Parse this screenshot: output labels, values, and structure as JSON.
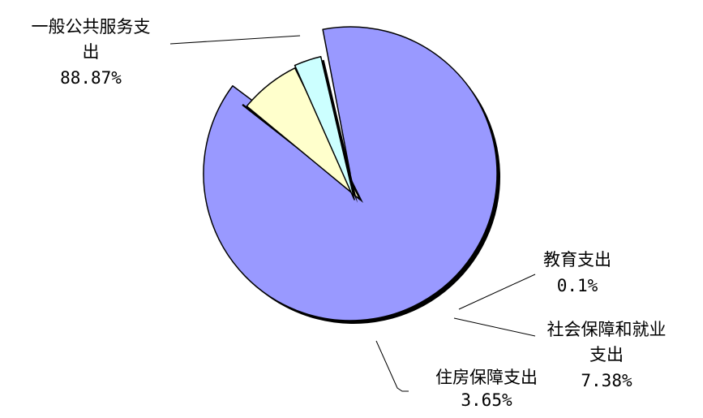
{
  "chart_data": {
    "type": "pie",
    "title": "",
    "slices": [
      {
        "name_lines": [
          "一般公共服务支",
          "出"
        ],
        "value_label": "88.87%",
        "value": 88.87,
        "color": "#9999ff"
      },
      {
        "name_lines": [
          "教育支出"
        ],
        "value_label": "0.1%",
        "value": 0.1,
        "color": "#9999ff"
      },
      {
        "name_lines": [
          "社会保障和就业",
          "支出"
        ],
        "value_label": "7.38%",
        "value": 7.38,
        "color": "#ffffcc"
      },
      {
        "name_lines": [
          "住房保障支出"
        ],
        "value_label": "3.65%",
        "value": 3.65,
        "color": "#ccffff"
      }
    ]
  }
}
